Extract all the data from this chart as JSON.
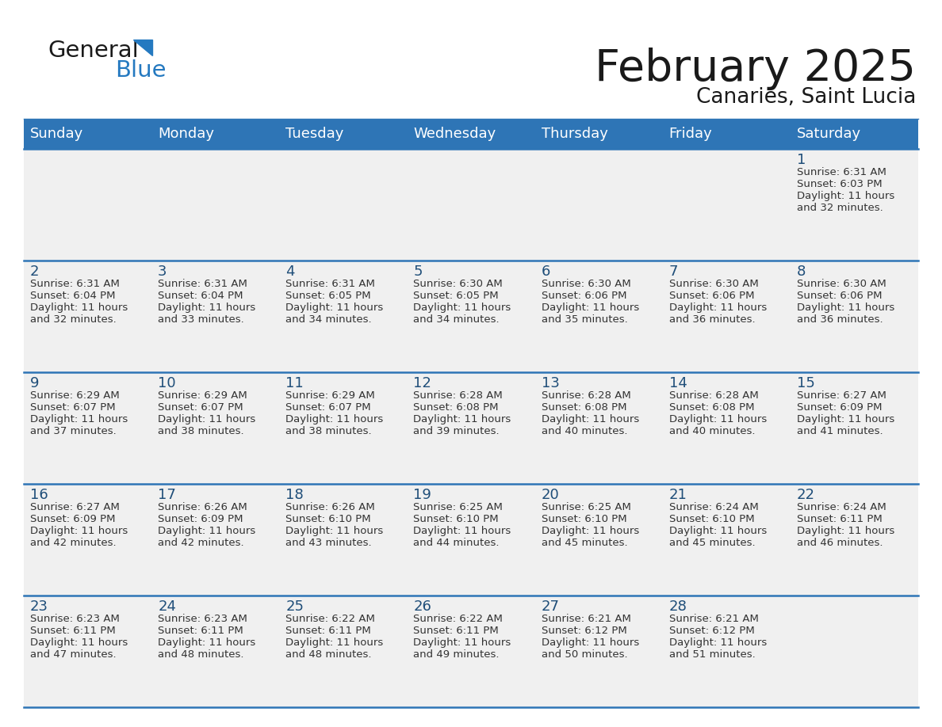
{
  "title": "February 2025",
  "subtitle": "Canaries, Saint Lucia",
  "days_of_week": [
    "Sunday",
    "Monday",
    "Tuesday",
    "Wednesday",
    "Thursday",
    "Friday",
    "Saturday"
  ],
  "header_bg": "#2E75B6",
  "header_text_color": "#FFFFFF",
  "cell_bg_odd": "#F0F0F0",
  "cell_bg_even": "#FFFFFF",
  "cell_text_color": "#333333",
  "day_num_color": "#1F4E79",
  "divider_color": "#2E75B6",
  "bg_color": "#FFFFFF",
  "title_color": "#1a1a1a",
  "subtitle_color": "#1a1a1a",
  "calendar_data": [
    [
      {
        "day": null,
        "sunrise": null,
        "sunset": null,
        "daylight": null
      },
      {
        "day": null,
        "sunrise": null,
        "sunset": null,
        "daylight": null
      },
      {
        "day": null,
        "sunrise": null,
        "sunset": null,
        "daylight": null
      },
      {
        "day": null,
        "sunrise": null,
        "sunset": null,
        "daylight": null
      },
      {
        "day": null,
        "sunrise": null,
        "sunset": null,
        "daylight": null
      },
      {
        "day": null,
        "sunrise": null,
        "sunset": null,
        "daylight": null
      },
      {
        "day": 1,
        "sunrise": "6:31 AM",
        "sunset": "6:03 PM",
        "daylight": "11 hours and 32 minutes."
      }
    ],
    [
      {
        "day": 2,
        "sunrise": "6:31 AM",
        "sunset": "6:04 PM",
        "daylight": "11 hours and 32 minutes."
      },
      {
        "day": 3,
        "sunrise": "6:31 AM",
        "sunset": "6:04 PM",
        "daylight": "11 hours and 33 minutes."
      },
      {
        "day": 4,
        "sunrise": "6:31 AM",
        "sunset": "6:05 PM",
        "daylight": "11 hours and 34 minutes."
      },
      {
        "day": 5,
        "sunrise": "6:30 AM",
        "sunset": "6:05 PM",
        "daylight": "11 hours and 34 minutes."
      },
      {
        "day": 6,
        "sunrise": "6:30 AM",
        "sunset": "6:06 PM",
        "daylight": "11 hours and 35 minutes."
      },
      {
        "day": 7,
        "sunrise": "6:30 AM",
        "sunset": "6:06 PM",
        "daylight": "11 hours and 36 minutes."
      },
      {
        "day": 8,
        "sunrise": "6:30 AM",
        "sunset": "6:06 PM",
        "daylight": "11 hours and 36 minutes."
      }
    ],
    [
      {
        "day": 9,
        "sunrise": "6:29 AM",
        "sunset": "6:07 PM",
        "daylight": "11 hours and 37 minutes."
      },
      {
        "day": 10,
        "sunrise": "6:29 AM",
        "sunset": "6:07 PM",
        "daylight": "11 hours and 38 minutes."
      },
      {
        "day": 11,
        "sunrise": "6:29 AM",
        "sunset": "6:07 PM",
        "daylight": "11 hours and 38 minutes."
      },
      {
        "day": 12,
        "sunrise": "6:28 AM",
        "sunset": "6:08 PM",
        "daylight": "11 hours and 39 minutes."
      },
      {
        "day": 13,
        "sunrise": "6:28 AM",
        "sunset": "6:08 PM",
        "daylight": "11 hours and 40 minutes."
      },
      {
        "day": 14,
        "sunrise": "6:28 AM",
        "sunset": "6:08 PM",
        "daylight": "11 hours and 40 minutes."
      },
      {
        "day": 15,
        "sunrise": "6:27 AM",
        "sunset": "6:09 PM",
        "daylight": "11 hours and 41 minutes."
      }
    ],
    [
      {
        "day": 16,
        "sunrise": "6:27 AM",
        "sunset": "6:09 PM",
        "daylight": "11 hours and 42 minutes."
      },
      {
        "day": 17,
        "sunrise": "6:26 AM",
        "sunset": "6:09 PM",
        "daylight": "11 hours and 42 minutes."
      },
      {
        "day": 18,
        "sunrise": "6:26 AM",
        "sunset": "6:10 PM",
        "daylight": "11 hours and 43 minutes."
      },
      {
        "day": 19,
        "sunrise": "6:25 AM",
        "sunset": "6:10 PM",
        "daylight": "11 hours and 44 minutes."
      },
      {
        "day": 20,
        "sunrise": "6:25 AM",
        "sunset": "6:10 PM",
        "daylight": "11 hours and 45 minutes."
      },
      {
        "day": 21,
        "sunrise": "6:24 AM",
        "sunset": "6:10 PM",
        "daylight": "11 hours and 45 minutes."
      },
      {
        "day": 22,
        "sunrise": "6:24 AM",
        "sunset": "6:11 PM",
        "daylight": "11 hours and 46 minutes."
      }
    ],
    [
      {
        "day": 23,
        "sunrise": "6:23 AM",
        "sunset": "6:11 PM",
        "daylight": "11 hours and 47 minutes."
      },
      {
        "day": 24,
        "sunrise": "6:23 AM",
        "sunset": "6:11 PM",
        "daylight": "11 hours and 48 minutes."
      },
      {
        "day": 25,
        "sunrise": "6:22 AM",
        "sunset": "6:11 PM",
        "daylight": "11 hours and 48 minutes."
      },
      {
        "day": 26,
        "sunrise": "6:22 AM",
        "sunset": "6:11 PM",
        "daylight": "11 hours and 49 minutes."
      },
      {
        "day": 27,
        "sunrise": "6:21 AM",
        "sunset": "6:12 PM",
        "daylight": "11 hours and 50 minutes."
      },
      {
        "day": 28,
        "sunrise": "6:21 AM",
        "sunset": "6:12 PM",
        "daylight": "11 hours and 51 minutes."
      },
      {
        "day": null,
        "sunrise": null,
        "sunset": null,
        "daylight": null
      }
    ]
  ],
  "logo_text_general": "General",
  "logo_text_blue": "Blue",
  "logo_general_color": "#1a1a1a",
  "logo_blue_color": "#2479C0",
  "logo_triangle_color": "#2479C0"
}
